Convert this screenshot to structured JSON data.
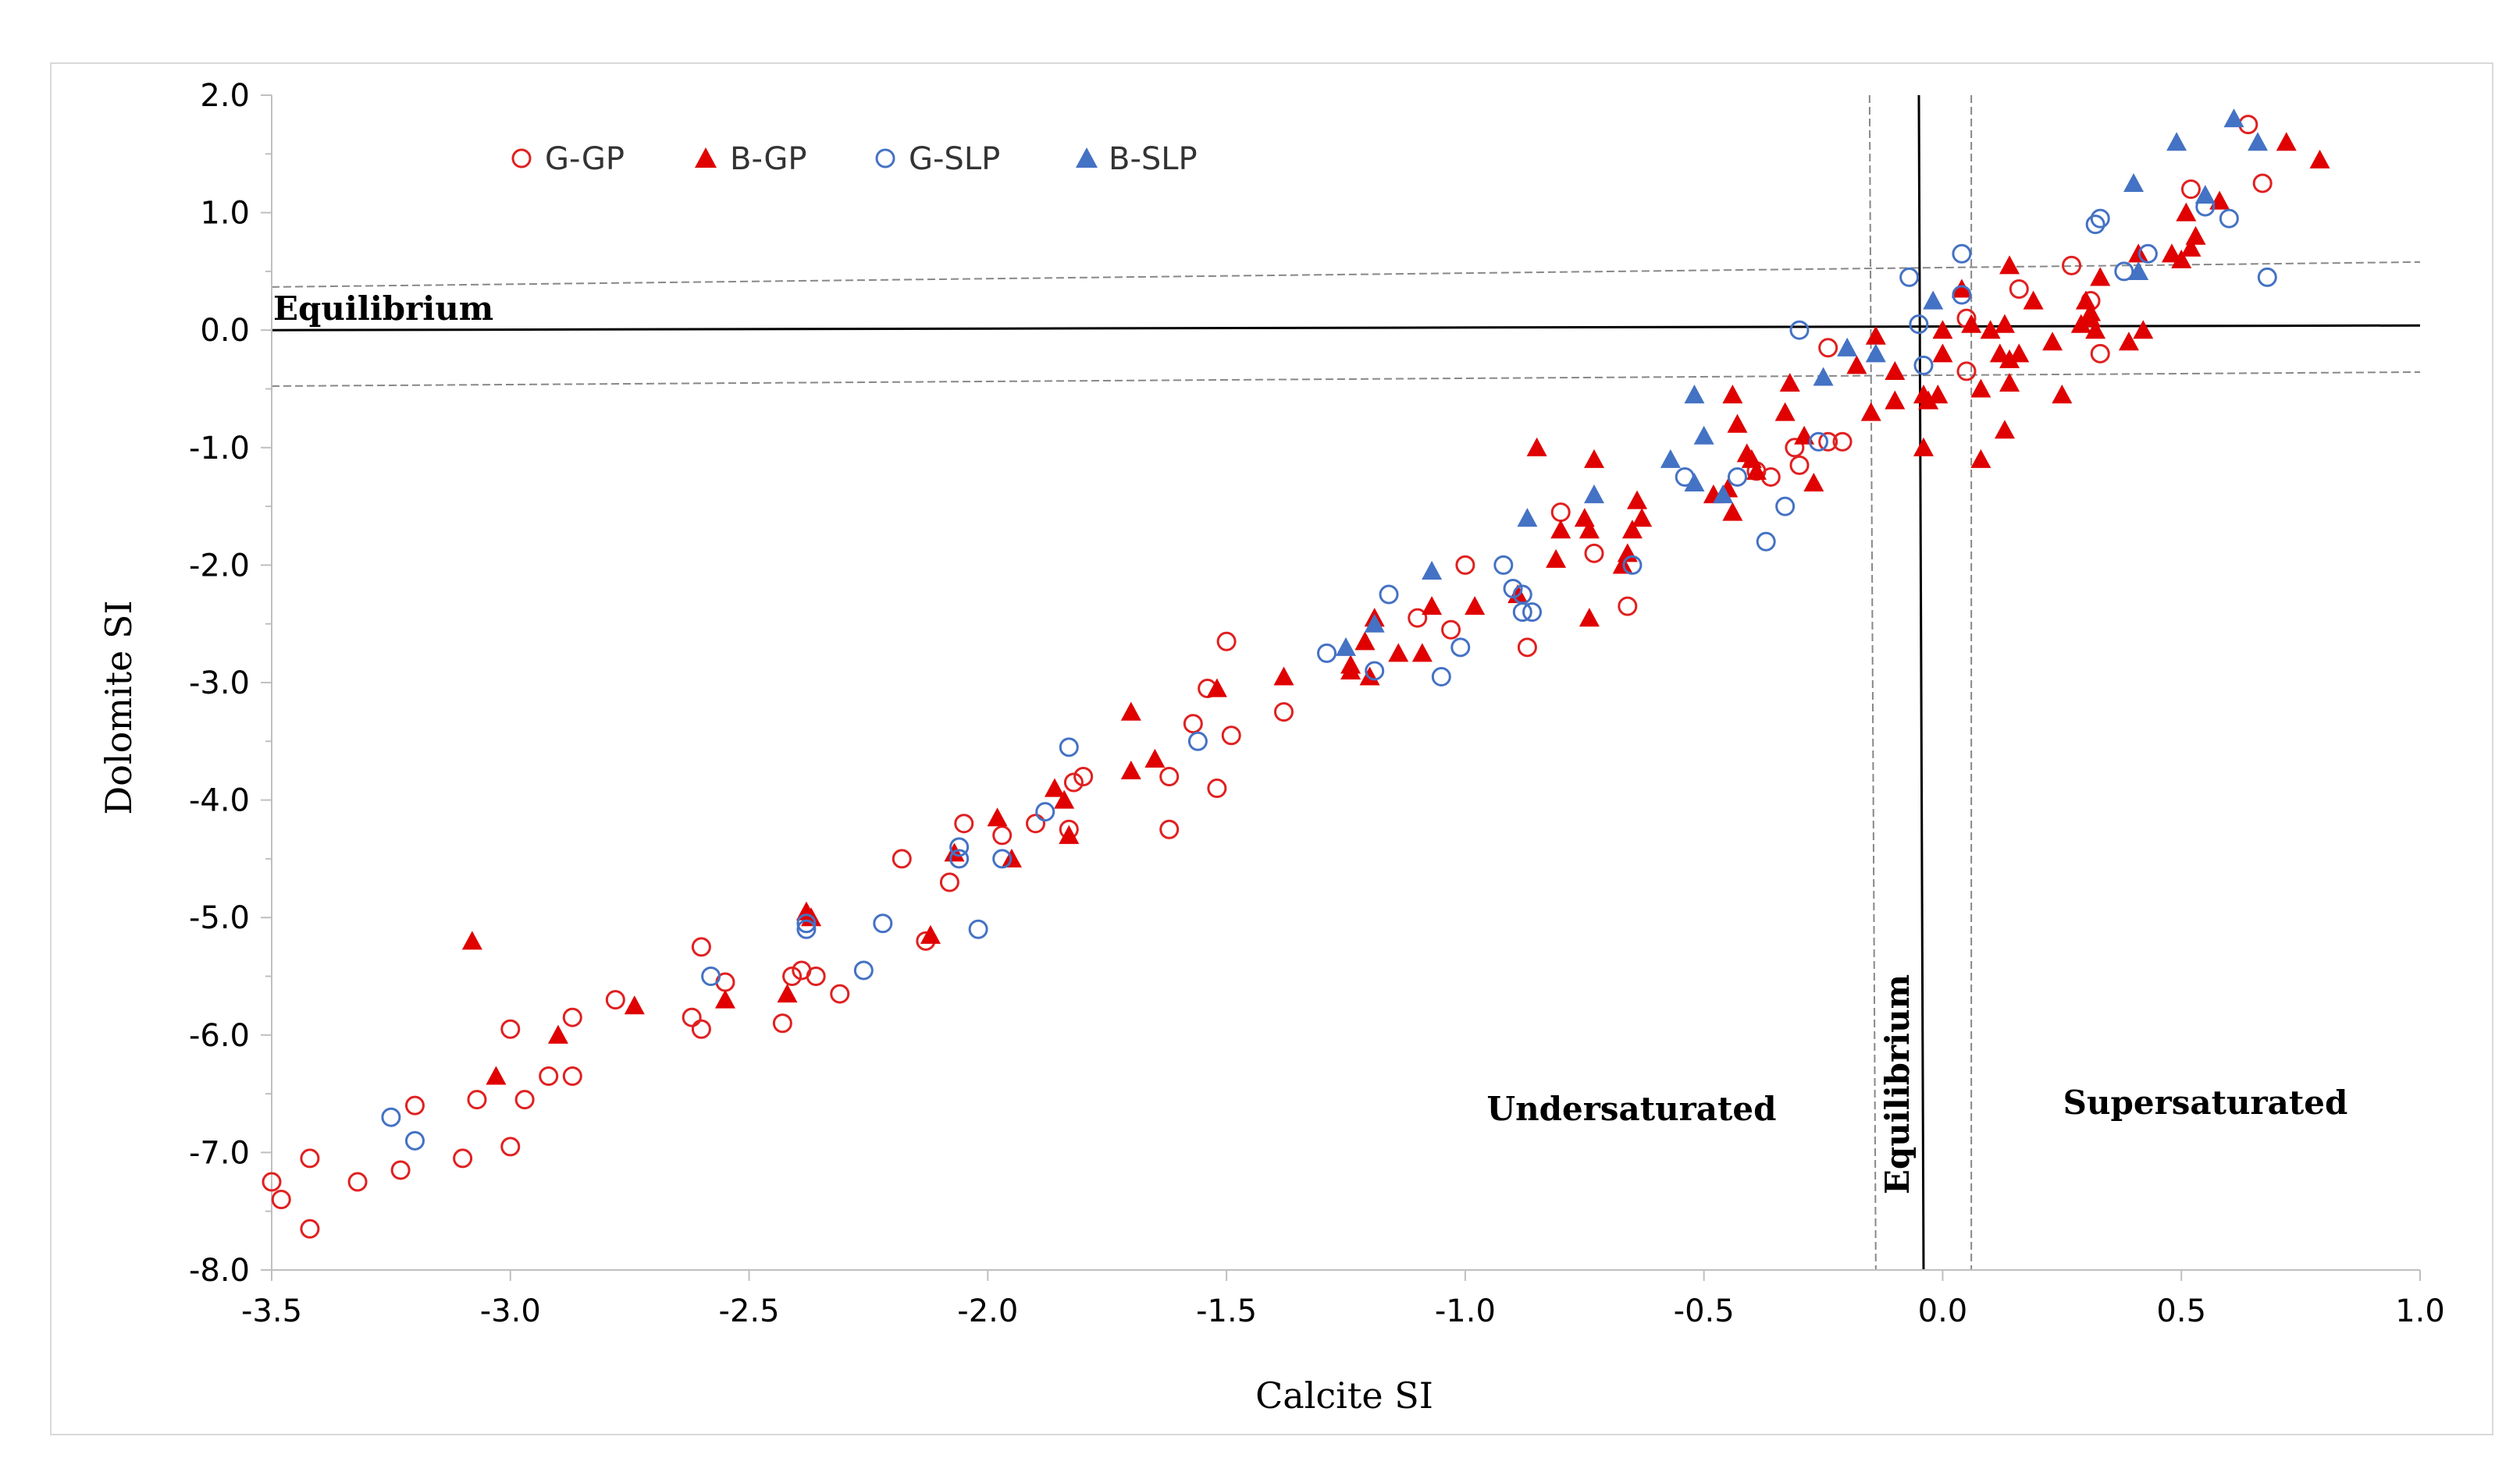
{
  "chart_data": {
    "type": "scatter",
    "title": "",
    "xlabel": "Calcite SI",
    "ylabel": "Dolomite SI",
    "xlim": [
      -3.5,
      1.0
    ],
    "ylim": [
      -8.0,
      2.0
    ],
    "x_ticks": [
      "-3.5",
      "-3.0",
      "-2.5",
      "-2.0",
      "-1.5",
      "-1.0",
      "-0.5",
      "0.0",
      "0.5",
      "1.0"
    ],
    "y_ticks": [
      "2.0",
      "1.0",
      "0.0",
      "-1.0",
      "-2.0",
      "-3.0",
      "-4.0",
      "-5.0",
      "-6.0",
      "-7.0",
      "-8.0"
    ],
    "legend_position": "top-left",
    "annotations": {
      "equilibrium_horizontal": "Equilibrium",
      "equilibrium_vertical": "Equilibrium",
      "undersaturated": "Undersaturated",
      "supersaturated": "Supersaturated"
    },
    "reference_lines": {
      "horizontal_equilibrium_y": 0.0,
      "horizontal_band_upper_y": 0.5,
      "horizontal_band_lower_y": -0.45,
      "vertical_equilibrium_x": -0.04,
      "vertical_band_left_x": -0.14,
      "vertical_band_right_x": 0.06
    },
    "series": [
      {
        "name": "G-GP",
        "marker": "open-circle",
        "color": "#e02020",
        "points": [
          [
            -3.5,
            -7.25
          ],
          [
            -3.48,
            -7.4
          ],
          [
            -3.42,
            -7.05
          ],
          [
            -3.42,
            -7.65
          ],
          [
            -3.32,
            -7.25
          ],
          [
            -3.23,
            -7.15
          ],
          [
            -3.2,
            -6.6
          ],
          [
            -3.1,
            -7.05
          ],
          [
            -3.07,
            -6.55
          ],
          [
            -3.0,
            -5.95
          ],
          [
            -3.0,
            -6.95
          ],
          [
            -2.97,
            -6.55
          ],
          [
            -2.92,
            -6.35
          ],
          [
            -2.87,
            -5.85
          ],
          [
            -2.87,
            -6.35
          ],
          [
            -2.78,
            -5.7
          ],
          [
            -2.62,
            -5.85
          ],
          [
            -2.6,
            -5.95
          ],
          [
            -2.6,
            -5.25
          ],
          [
            -2.55,
            -5.55
          ],
          [
            -2.43,
            -5.9
          ],
          [
            -2.41,
            -5.5
          ],
          [
            -2.39,
            -5.45
          ],
          [
            -2.36,
            -5.5
          ],
          [
            -2.31,
            -5.65
          ],
          [
            -2.18,
            -4.5
          ],
          [
            -2.13,
            -5.2
          ],
          [
            -2.08,
            -4.7
          ],
          [
            -2.05,
            -4.2
          ],
          [
            -1.97,
            -4.3
          ],
          [
            -1.9,
            -4.2
          ],
          [
            -1.83,
            -4.25
          ],
          [
            -1.82,
            -3.85
          ],
          [
            -1.8,
            -3.8
          ],
          [
            -1.62,
            -4.25
          ],
          [
            -1.62,
            -3.8
          ],
          [
            -1.57,
            -3.35
          ],
          [
            -1.54,
            -3.05
          ],
          [
            -1.52,
            -3.9
          ],
          [
            -1.5,
            -2.65
          ],
          [
            -1.49,
            -3.45
          ],
          [
            -1.38,
            -3.25
          ],
          [
            -1.1,
            -2.45
          ],
          [
            -1.03,
            -2.55
          ],
          [
            -1.0,
            -2.0
          ],
          [
            -0.87,
            -2.7
          ],
          [
            -0.8,
            -1.55
          ],
          [
            -0.73,
            -1.9
          ],
          [
            -0.66,
            -2.35
          ],
          [
            -0.39,
            -1.2
          ],
          [
            -0.36,
            -1.25
          ],
          [
            -0.31,
            -1.0
          ],
          [
            -0.3,
            -1.15
          ],
          [
            -0.24,
            -0.95
          ],
          [
            -0.21,
            -0.95
          ],
          [
            -0.24,
            -0.15
          ],
          [
            0.05,
            -0.35
          ],
          [
            0.05,
            0.1
          ],
          [
            0.16,
            0.35
          ],
          [
            0.27,
            0.55
          ],
          [
            0.31,
            0.25
          ],
          [
            0.33,
            -0.2
          ],
          [
            0.52,
            1.2
          ],
          [
            0.64,
            1.75
          ],
          [
            0.67,
            1.25
          ]
        ]
      },
      {
        "name": "B-GP",
        "marker": "filled-triangle",
        "color": "#e00000",
        "points": [
          [
            -3.08,
            -5.2
          ],
          [
            -3.03,
            -6.35
          ],
          [
            -2.9,
            -6.0
          ],
          [
            -2.74,
            -5.75
          ],
          [
            -2.55,
            -5.7
          ],
          [
            -2.42,
            -5.65
          ],
          [
            -2.38,
            -4.95
          ],
          [
            -2.37,
            -5.0
          ],
          [
            -2.12,
            -5.15
          ],
          [
            -2.07,
            -4.45
          ],
          [
            -1.98,
            -4.15
          ],
          [
            -1.95,
            -4.5
          ],
          [
            -1.86,
            -3.9
          ],
          [
            -1.84,
            -4.0
          ],
          [
            -1.83,
            -4.3
          ],
          [
            -1.7,
            -3.25
          ],
          [
            -1.7,
            -3.75
          ],
          [
            -1.65,
            -3.65
          ],
          [
            -1.52,
            -3.05
          ],
          [
            -1.38,
            -2.95
          ],
          [
            -1.24,
            -2.85
          ],
          [
            -1.24,
            -2.9
          ],
          [
            -1.21,
            -2.65
          ],
          [
            -1.2,
            -2.95
          ],
          [
            -1.19,
            -2.45
          ],
          [
            -1.14,
            -2.75
          ],
          [
            -1.09,
            -2.75
          ],
          [
            -1.07,
            -2.35
          ],
          [
            -0.98,
            -2.35
          ],
          [
            -0.89,
            -2.25
          ],
          [
            -0.85,
            -1.0
          ],
          [
            -0.81,
            -1.95
          ],
          [
            -0.8,
            -1.7
          ],
          [
            -0.75,
            -1.6
          ],
          [
            -0.74,
            -2.45
          ],
          [
            -0.74,
            -1.7
          ],
          [
            -0.73,
            -1.1
          ],
          [
            -0.67,
            -2.0
          ],
          [
            -0.66,
            -1.9
          ],
          [
            -0.65,
            -1.7
          ],
          [
            -0.64,
            -1.45
          ],
          [
            -0.63,
            -1.6
          ],
          [
            -0.48,
            -1.4
          ],
          [
            -0.45,
            -1.35
          ],
          [
            -0.44,
            -1.55
          ],
          [
            -0.44,
            -0.55
          ],
          [
            -0.43,
            -0.8
          ],
          [
            -0.41,
            -1.05
          ],
          [
            -0.4,
            -1.1
          ],
          [
            -0.39,
            -1.2
          ],
          [
            -0.33,
            -0.7
          ],
          [
            -0.32,
            -0.45
          ],
          [
            -0.29,
            -0.9
          ],
          [
            -0.27,
            -1.3
          ],
          [
            -0.18,
            -0.3
          ],
          [
            -0.15,
            -0.7
          ],
          [
            -0.14,
            -0.05
          ],
          [
            -0.1,
            -0.35
          ],
          [
            -0.1,
            -0.6
          ],
          [
            -0.04,
            -0.55
          ],
          [
            -0.04,
            -1.0
          ],
          [
            -0.03,
            -0.6
          ],
          [
            -0.01,
            -0.55
          ],
          [
            0.0,
            0.0
          ],
          [
            0.0,
            -0.2
          ],
          [
            0.04,
            0.35
          ],
          [
            0.06,
            0.05
          ],
          [
            0.08,
            -0.5
          ],
          [
            0.08,
            -1.1
          ],
          [
            0.1,
            0.0
          ],
          [
            0.12,
            -0.2
          ],
          [
            0.13,
            -0.85
          ],
          [
            0.13,
            0.05
          ],
          [
            0.14,
            -0.45
          ],
          [
            0.14,
            -0.25
          ],
          [
            0.14,
            0.55
          ],
          [
            0.16,
            -0.2
          ],
          [
            0.19,
            0.25
          ],
          [
            0.23,
            -0.1
          ],
          [
            0.25,
            -0.55
          ],
          [
            0.29,
            0.05
          ],
          [
            0.3,
            0.25
          ],
          [
            0.31,
            0.1
          ],
          [
            0.31,
            0.15
          ],
          [
            0.32,
            0.0
          ],
          [
            0.33,
            0.45
          ],
          [
            0.39,
            -0.1
          ],
          [
            0.41,
            0.65
          ],
          [
            0.42,
            0.0
          ],
          [
            0.48,
            0.65
          ],
          [
            0.5,
            0.6
          ],
          [
            0.51,
            1.0
          ],
          [
            0.52,
            0.7
          ],
          [
            0.53,
            0.8
          ],
          [
            0.58,
            1.1
          ],
          [
            0.72,
            1.6
          ],
          [
            0.79,
            1.45
          ]
        ]
      },
      {
        "name": "G-SLP",
        "marker": "open-circle",
        "color": "#4472c4",
        "points": [
          [
            -3.25,
            -6.7
          ],
          [
            -3.2,
            -6.9
          ],
          [
            -2.58,
            -5.5
          ],
          [
            -2.38,
            -5.05
          ],
          [
            -2.38,
            -5.1
          ],
          [
            -2.26,
            -5.45
          ],
          [
            -2.22,
            -5.05
          ],
          [
            -2.06,
            -4.4
          ],
          [
            -2.06,
            -4.5
          ],
          [
            -2.02,
            -5.1
          ],
          [
            -1.97,
            -4.5
          ],
          [
            -1.88,
            -4.1
          ],
          [
            -1.83,
            -3.55
          ],
          [
            -1.56,
            -3.5
          ],
          [
            -1.29,
            -2.75
          ],
          [
            -1.19,
            -2.9
          ],
          [
            -1.16,
            -2.25
          ],
          [
            -1.05,
            -2.95
          ],
          [
            -1.01,
            -2.7
          ],
          [
            -0.92,
            -2.0
          ],
          [
            -0.9,
            -2.2
          ],
          [
            -0.88,
            -2.25
          ],
          [
            -0.88,
            -2.4
          ],
          [
            -0.86,
            -2.4
          ],
          [
            -0.65,
            -2.0
          ],
          [
            -0.54,
            -1.25
          ],
          [
            -0.43,
            -1.25
          ],
          [
            -0.37,
            -1.8
          ],
          [
            -0.33,
            -1.5
          ],
          [
            -0.3,
            0.0
          ],
          [
            -0.26,
            -0.95
          ],
          [
            -0.07,
            0.45
          ],
          [
            -0.05,
            0.05
          ],
          [
            -0.04,
            -0.3
          ],
          [
            0.04,
            0.65
          ],
          [
            0.04,
            0.3
          ],
          [
            0.32,
            0.9
          ],
          [
            0.33,
            0.95
          ],
          [
            0.38,
            0.5
          ],
          [
            0.43,
            0.65
          ],
          [
            0.55,
            1.05
          ],
          [
            0.6,
            0.95
          ],
          [
            0.68,
            0.45
          ]
        ]
      },
      {
        "name": "B-SLP",
        "marker": "filled-triangle",
        "color": "#4472c4",
        "points": [
          [
            -1.25,
            -2.7
          ],
          [
            -1.19,
            -2.5
          ],
          [
            -1.07,
            -2.05
          ],
          [
            -0.87,
            -1.6
          ],
          [
            -0.73,
            -1.4
          ],
          [
            -0.57,
            -1.1
          ],
          [
            -0.52,
            -0.55
          ],
          [
            -0.52,
            -1.3
          ],
          [
            -0.5,
            -0.9
          ],
          [
            -0.46,
            -1.4
          ],
          [
            -0.25,
            -0.4
          ],
          [
            -0.2,
            -0.15
          ],
          [
            -0.14,
            -0.2
          ],
          [
            -0.02,
            0.25
          ],
          [
            0.4,
            1.25
          ],
          [
            0.41,
            0.5
          ],
          [
            0.49,
            1.6
          ],
          [
            0.55,
            1.15
          ],
          [
            0.61,
            1.8
          ],
          [
            0.66,
            1.6
          ]
        ]
      }
    ]
  }
}
